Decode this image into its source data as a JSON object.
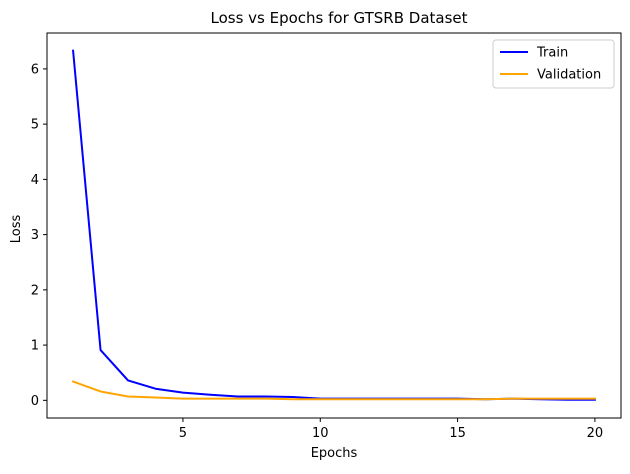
{
  "chart_data": {
    "type": "line",
    "title": "Loss vs Epochs for GTSRB Dataset",
    "xlabel": "Epochs",
    "ylabel": "Loss",
    "xlim": [
      0.05,
      20.95
    ],
    "ylim": [
      -0.32,
      6.65
    ],
    "xticks": [
      5,
      10,
      15,
      20
    ],
    "yticks": [
      0,
      1,
      2,
      3,
      4,
      5,
      6
    ],
    "grid": false,
    "legend_position": "top-right",
    "x": [
      1,
      2,
      3,
      4,
      5,
      6,
      7,
      8,
      9,
      10,
      11,
      12,
      13,
      14,
      15,
      16,
      17,
      18,
      19,
      20
    ],
    "series": [
      {
        "name": "Train",
        "color": "#0000ff",
        "values": [
          6.33,
          0.91,
          0.36,
          0.21,
          0.14,
          0.1,
          0.07,
          0.07,
          0.06,
          0.03,
          0.03,
          0.03,
          0.03,
          0.03,
          0.03,
          0.02,
          0.03,
          0.02,
          0.01,
          0.01
        ]
      },
      {
        "name": "Validation",
        "color": "#ffa500",
        "values": [
          0.34,
          0.16,
          0.07,
          0.05,
          0.03,
          0.03,
          0.03,
          0.03,
          0.02,
          0.02,
          0.02,
          0.02,
          0.02,
          0.02,
          0.02,
          0.02,
          0.03,
          0.03,
          0.03,
          0.03
        ]
      }
    ]
  }
}
